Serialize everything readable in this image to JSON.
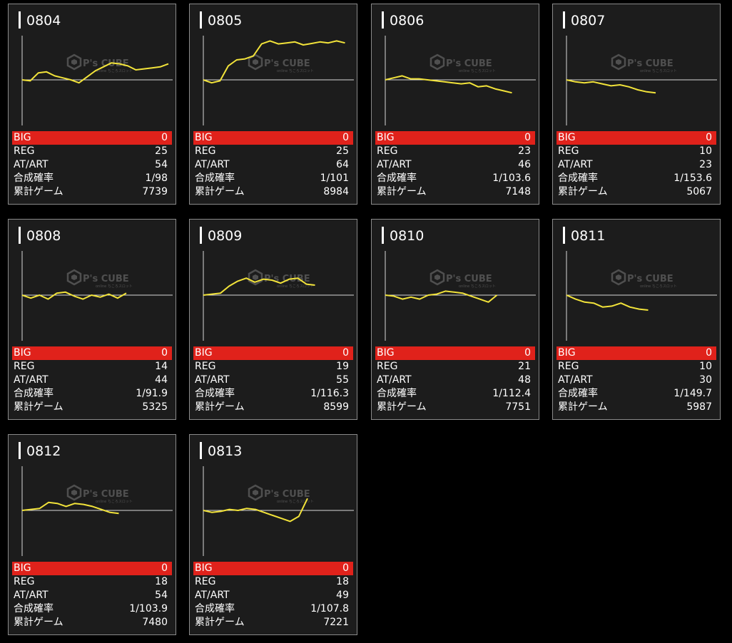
{
  "labels": {
    "big": "BIG",
    "reg": "REG",
    "at_art": "AT/ART",
    "prob": "合成確率",
    "games": "累計ゲーム"
  },
  "watermark": {
    "logo_text": "P's CUBE",
    "tagline": "online ちころスロット",
    "icon": "cube-logo-icon"
  },
  "colors": {
    "card_bg": "#1c1c1c",
    "card_border": "#8a8a8a",
    "big_bar": "#e0221b",
    "line": "#f2e33a",
    "axis": "#d8d8d8"
  },
  "chart_data": [
    {
      "type": "line",
      "title": "0804",
      "stats": {
        "big": "0",
        "reg": "25",
        "at_art": "54",
        "prob": "1/98",
        "games": "7739"
      },
      "series": [
        {
          "values": [
            0,
            -0.05,
            0.35,
            0.4,
            0.2,
            0.1,
            0.0,
            -0.15,
            0.15,
            0.45,
            0.65,
            0.85,
            0.8,
            0.7,
            0.5,
            0.55,
            0.6,
            0.65,
            0.8
          ]
        }
      ]
    },
    {
      "type": "line",
      "title": "0805",
      "stats": {
        "big": "0",
        "reg": "25",
        "at_art": "64",
        "prob": "1/101",
        "games": "8984"
      },
      "series": [
        {
          "values": [
            0,
            -0.15,
            -0.05,
            0.7,
            1.0,
            1.05,
            1.2,
            1.8,
            1.95,
            1.8,
            1.85,
            1.9,
            1.75,
            1.82,
            1.9,
            1.85,
            1.95,
            1.85
          ]
        }
      ]
    },
    {
      "type": "line",
      "title": "0806",
      "stats": {
        "big": "0",
        "reg": "23",
        "at_art": "46",
        "prob": "1/103.6",
        "games": "7148"
      },
      "series": [
        {
          "values": [
            0,
            0.1,
            0.2,
            0.05,
            0.05,
            0.0,
            -0.05,
            -0.1,
            -0.15,
            -0.2,
            -0.15,
            -0.35,
            -0.3,
            -0.45,
            -0.55,
            -0.65
          ]
        }
      ]
    },
    {
      "type": "line",
      "title": "0807",
      "stats": {
        "big": "0",
        "reg": "10",
        "at_art": "23",
        "prob": "1/153.6",
        "games": "5067"
      },
      "series": [
        {
          "values": [
            0,
            -0.1,
            -0.15,
            -0.1,
            -0.2,
            -0.3,
            -0.25,
            -0.35,
            -0.5,
            -0.6,
            -0.65
          ]
        }
      ]
    },
    {
      "type": "line",
      "title": "0808",
      "stats": {
        "big": "0",
        "reg": "14",
        "at_art": "44",
        "prob": "1/91.9",
        "games": "5325"
      },
      "series": [
        {
          "values": [
            0,
            -0.15,
            0.0,
            -0.2,
            0.1,
            0.15,
            -0.05,
            -0.2,
            0.0,
            -0.1,
            0.05,
            -0.15,
            0.1
          ]
        }
      ]
    },
    {
      "type": "line",
      "title": "0809",
      "stats": {
        "big": "0",
        "reg": "19",
        "at_art": "55",
        "prob": "1/116.3",
        "games": "8599"
      },
      "series": [
        {
          "values": [
            0,
            0.05,
            0.1,
            0.45,
            0.7,
            0.85,
            0.65,
            0.8,
            0.75,
            0.6,
            0.8,
            0.85,
            0.55,
            0.5
          ]
        }
      ]
    },
    {
      "type": "line",
      "title": "0810",
      "stats": {
        "big": "0",
        "reg": "21",
        "at_art": "48",
        "prob": "1/112.4",
        "games": "7751"
      },
      "series": [
        {
          "values": [
            0,
            -0.05,
            -0.2,
            -0.1,
            -0.2,
            0.0,
            0.05,
            0.2,
            0.15,
            0.1,
            -0.05,
            -0.2,
            -0.35,
            0.0
          ]
        }
      ]
    },
    {
      "type": "line",
      "title": "0811",
      "stats": {
        "big": "0",
        "reg": "10",
        "at_art": "30",
        "prob": "1/149.7",
        "games": "5987"
      },
      "series": [
        {
          "values": [
            0,
            -0.2,
            -0.35,
            -0.4,
            -0.6,
            -0.55,
            -0.4,
            -0.6,
            -0.7,
            -0.75
          ]
        }
      ]
    },
    {
      "type": "line",
      "title": "0812",
      "stats": {
        "big": "0",
        "reg": "18",
        "at_art": "54",
        "prob": "1/103.9",
        "games": "7480"
      },
      "series": [
        {
          "values": [
            0,
            0.05,
            0.1,
            0.4,
            0.35,
            0.2,
            0.35,
            0.3,
            0.2,
            0.05,
            -0.1,
            -0.15
          ]
        }
      ]
    },
    {
      "type": "line",
      "title": "0813",
      "stats": {
        "big": "0",
        "reg": "18",
        "at_art": "49",
        "prob": "1/107.8",
        "games": "7221"
      },
      "series": [
        {
          "values": [
            0,
            -0.1,
            -0.05,
            0.05,
            0.0,
            0.1,
            0.05,
            -0.1,
            -0.25,
            -0.4,
            -0.55,
            -0.3,
            0.6
          ]
        }
      ]
    }
  ]
}
